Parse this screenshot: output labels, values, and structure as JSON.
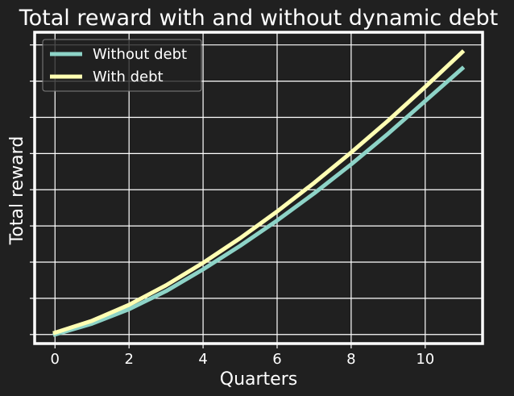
{
  "chart_data": {
    "type": "line",
    "title": "Total reward with and without dynamic debt",
    "xlabel": "Quarters",
    "ylabel": "Total reward",
    "x": [
      0,
      1,
      2,
      3,
      4,
      5,
      6,
      7,
      8,
      9,
      10,
      11
    ],
    "xticks": [
      0,
      2,
      4,
      6,
      8,
      10
    ],
    "xlim": [
      -0.55,
      11.55
    ],
    "ylim": [
      -0.25,
      8.35
    ],
    "yticks_hidden": true,
    "grid": true,
    "legend_position": "upper left",
    "series": [
      {
        "name": "Without debt",
        "color": "#8dd3c7",
        "values": [
          0.0,
          0.3,
          0.7,
          1.2,
          1.8,
          2.45,
          3.15,
          3.9,
          4.7,
          5.55,
          6.45,
          7.35
        ]
      },
      {
        "name": "With debt",
        "color": "#ffffb3",
        "values": [
          0.05,
          0.38,
          0.82,
          1.36,
          1.98,
          2.66,
          3.4,
          4.19,
          5.03,
          5.91,
          6.84,
          7.8
        ]
      }
    ]
  }
}
